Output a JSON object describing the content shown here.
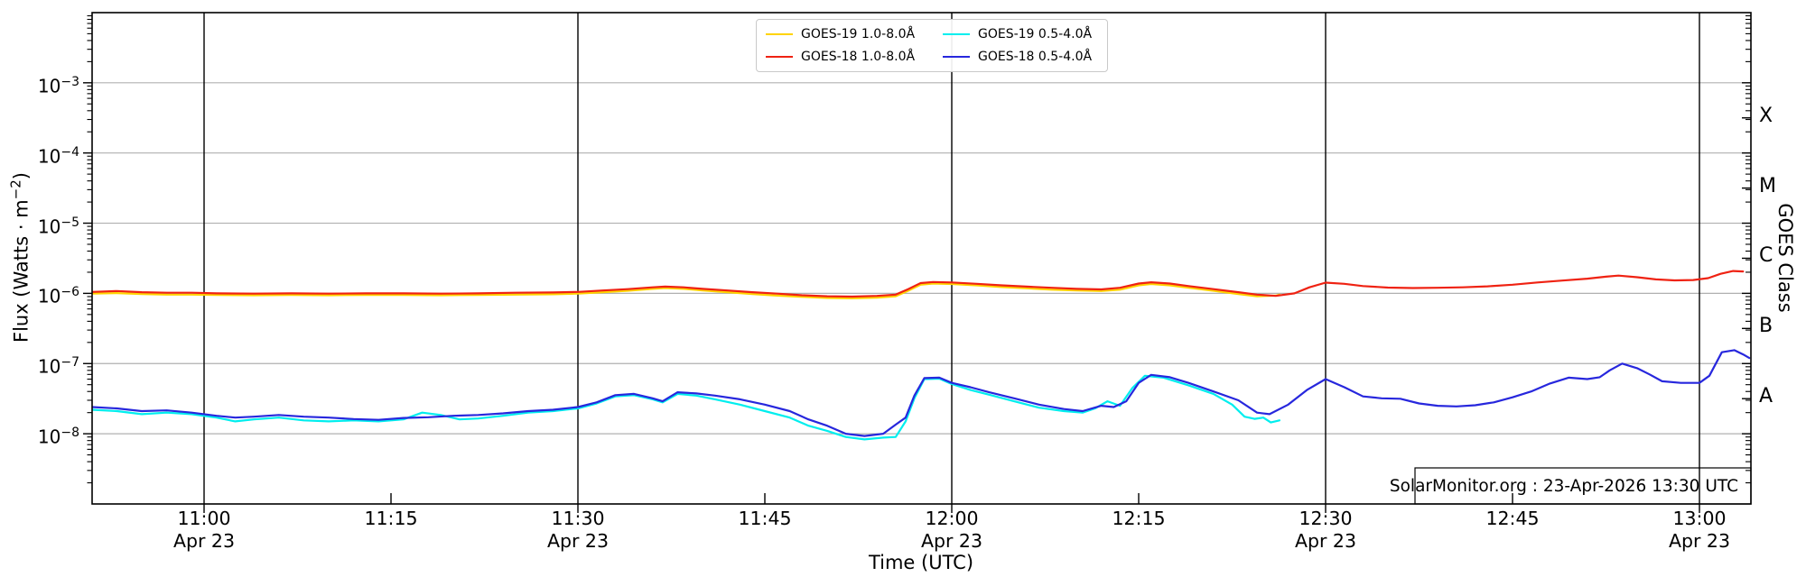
{
  "figure": {
    "watermark": "SolarMonitor.org : 23-Apr-2026 13:30 UTC",
    "xlabel": "Time (UTC)",
    "ylabel": "Flux (Watts · m⁻²)",
    "ylabel_pre": "Flux (Watts · m",
    "ylabel_sup": "−2",
    "ylabel_post": ")",
    "ylabel_right": "GOES Class"
  },
  "chart_data": {
    "type": "line",
    "title": "",
    "xlabel": "Time (UTC)",
    "ylabel": "Flux (Watts · m⁻²)",
    "ylabel_right": "GOES Class",
    "x_unit": "minutes relative to 11:00 UTC, Apr 23",
    "x_range_minutes": [
      -9,
      124.1
    ],
    "y_scale": "log",
    "y_log_range_exponents": [
      -9,
      -2
    ],
    "y_tick_exponents": [
      -3,
      -4,
      -5,
      -6,
      -7,
      -8
    ],
    "x_gridline_minutes": [
      0,
      30,
      60,
      90,
      120
    ],
    "x_minor_tick_minutes": [
      15,
      45,
      75,
      105
    ],
    "x_ticks": [
      {
        "minute": 0,
        "label": "11:00",
        "sublabel": "Apr 23"
      },
      {
        "minute": 15,
        "label": "11:15",
        "sublabel": ""
      },
      {
        "minute": 30,
        "label": "11:30",
        "sublabel": "Apr 23"
      },
      {
        "minute": 45,
        "label": "11:45",
        "sublabel": ""
      },
      {
        "minute": 60,
        "label": "12:00",
        "sublabel": "Apr 23"
      },
      {
        "minute": 75,
        "label": "12:15",
        "sublabel": ""
      },
      {
        "minute": 90,
        "label": "12:30",
        "sublabel": "Apr 23"
      },
      {
        "minute": 105,
        "label": "12:45",
        "sublabel": ""
      },
      {
        "minute": 120,
        "label": "13:00",
        "sublabel": "Apr 23"
      }
    ],
    "goes_class_bands": [
      {
        "label": "X",
        "center_exponent": -3.5
      },
      {
        "label": "M",
        "center_exponent": -4.5
      },
      {
        "label": "C",
        "center_exponent": -5.5
      },
      {
        "label": "B",
        "center_exponent": -6.5
      },
      {
        "label": "A",
        "center_exponent": -7.5
      }
    ],
    "colors": {
      "grid": "#b0b0b0",
      "axis": "#000000"
    },
    "series": [
      {
        "name": "GOES-19 1.0-8.0Å",
        "color": "#ffd400",
        "points": [
          [
            -9,
            9.9e-07
          ],
          [
            -7,
            1.01e-06
          ],
          [
            -5,
            9.8e-07
          ],
          [
            -3,
            9.6e-07
          ],
          [
            -1,
            9.6e-07
          ],
          [
            1,
            9.5e-07
          ],
          [
            4,
            9.4e-07
          ],
          [
            7,
            9.5e-07
          ],
          [
            10,
            9.4e-07
          ],
          [
            13,
            9.5e-07
          ],
          [
            16,
            9.5e-07
          ],
          [
            19,
            9.4e-07
          ],
          [
            22,
            9.5e-07
          ],
          [
            25,
            9.6e-07
          ],
          [
            28,
            9.7e-07
          ],
          [
            30,
            9.9e-07
          ],
          [
            32,
            1.04e-06
          ],
          [
            34,
            1.09e-06
          ],
          [
            36,
            1.16e-06
          ],
          [
            37,
            1.19e-06
          ],
          [
            38.5,
            1.16e-06
          ],
          [
            40,
            1.1e-06
          ],
          [
            42,
            1.04e-06
          ],
          [
            44,
            9.8e-07
          ],
          [
            46,
            9.3e-07
          ],
          [
            48,
            8.9e-07
          ],
          [
            50,
            8.6e-07
          ],
          [
            52,
            8.5e-07
          ],
          [
            54,
            8.7e-07
          ],
          [
            55.5,
            9.1e-07
          ],
          [
            56.5,
            1.09e-06
          ],
          [
            57.5,
            1.33e-06
          ],
          [
            58.5,
            1.38e-06
          ],
          [
            60,
            1.36e-06
          ],
          [
            62,
            1.3e-06
          ],
          [
            64,
            1.23e-06
          ],
          [
            66,
            1.18e-06
          ],
          [
            68,
            1.13e-06
          ],
          [
            70,
            1.1e-06
          ],
          [
            72,
            1.08e-06
          ],
          [
            73.5,
            1.13e-06
          ],
          [
            75,
            1.3e-06
          ],
          [
            76,
            1.36e-06
          ],
          [
            77.5,
            1.3e-06
          ],
          [
            79,
            1.2e-06
          ],
          [
            81,
            1.09e-06
          ],
          [
            83,
            9.8e-07
          ],
          [
            84.5,
            9.1e-07
          ],
          [
            86,
            9.3e-07
          ],
          [
            86.3,
            9.6e-07
          ]
        ]
      },
      {
        "name": "GOES-18 1.0-8.0Å",
        "color": "#ef2212",
        "points": [
          [
            -9,
            1.05e-06
          ],
          [
            -7,
            1.08e-06
          ],
          [
            -5,
            1.04e-06
          ],
          [
            -3,
            1.02e-06
          ],
          [
            -1,
            1.02e-06
          ],
          [
            1,
            1e-06
          ],
          [
            4,
            9.9e-07
          ],
          [
            7,
            1e-06
          ],
          [
            10,
            9.9e-07
          ],
          [
            13,
            1e-06
          ],
          [
            16,
            1e-06
          ],
          [
            19,
            9.9e-07
          ],
          [
            22,
            1e-06
          ],
          [
            25,
            1.02e-06
          ],
          [
            28,
            1.03e-06
          ],
          [
            30,
            1.05e-06
          ],
          [
            32,
            1.1e-06
          ],
          [
            34,
            1.15e-06
          ],
          [
            36,
            1.22e-06
          ],
          [
            37,
            1.25e-06
          ],
          [
            38.5,
            1.22e-06
          ],
          [
            40,
            1.16e-06
          ],
          [
            42,
            1.1e-06
          ],
          [
            44,
            1.04e-06
          ],
          [
            46,
            9.9e-07
          ],
          [
            48,
            9.4e-07
          ],
          [
            50,
            9.1e-07
          ],
          [
            52,
            9e-07
          ],
          [
            54,
            9.2e-07
          ],
          [
            55.5,
            9.6e-07
          ],
          [
            56.5,
            1.15e-06
          ],
          [
            57.5,
            1.4e-06
          ],
          [
            58.5,
            1.45e-06
          ],
          [
            60,
            1.43e-06
          ],
          [
            62,
            1.37e-06
          ],
          [
            64,
            1.3e-06
          ],
          [
            66,
            1.25e-06
          ],
          [
            68,
            1.2e-06
          ],
          [
            70,
            1.16e-06
          ],
          [
            72,
            1.14e-06
          ],
          [
            73.5,
            1.2e-06
          ],
          [
            75,
            1.38e-06
          ],
          [
            76,
            1.44e-06
          ],
          [
            77.5,
            1.38e-06
          ],
          [
            79,
            1.27e-06
          ],
          [
            81,
            1.15e-06
          ],
          [
            83,
            1.04e-06
          ],
          [
            84.5,
            9.6e-07
          ],
          [
            86,
            9.2e-07
          ],
          [
            87.5,
            1e-06
          ],
          [
            88.7,
            1.22e-06
          ],
          [
            90,
            1.42e-06
          ],
          [
            91.5,
            1.37e-06
          ],
          [
            93,
            1.27e-06
          ],
          [
            95,
            1.21e-06
          ],
          [
            97,
            1.19e-06
          ],
          [
            99,
            1.2e-06
          ],
          [
            101,
            1.22e-06
          ],
          [
            103,
            1.26e-06
          ],
          [
            105,
            1.33e-06
          ],
          [
            107,
            1.43e-06
          ],
          [
            109,
            1.52e-06
          ],
          [
            111,
            1.62e-06
          ],
          [
            112.5,
            1.73e-06
          ],
          [
            113.5,
            1.79e-06
          ],
          [
            115,
            1.7e-06
          ],
          [
            116.5,
            1.58e-06
          ],
          [
            118,
            1.53e-06
          ],
          [
            119.5,
            1.55e-06
          ],
          [
            120.7,
            1.65e-06
          ],
          [
            121.7,
            1.9e-06
          ],
          [
            122.7,
            2.08e-06
          ],
          [
            123.5,
            2.05e-06
          ]
        ]
      },
      {
        "name": "GOES-19 0.5-4.0Å",
        "color": "#00eeee",
        "points": [
          [
            -9,
            2.2e-08
          ],
          [
            -7,
            2.1e-08
          ],
          [
            -5,
            1.9e-08
          ],
          [
            -3,
            2e-08
          ],
          [
            -1,
            1.9e-08
          ],
          [
            1,
            1.7e-08
          ],
          [
            2.5,
            1.5e-08
          ],
          [
            4,
            1.6e-08
          ],
          [
            6,
            1.7e-08
          ],
          [
            8,
            1.55e-08
          ],
          [
            10,
            1.5e-08
          ],
          [
            12,
            1.55e-08
          ],
          [
            14,
            1.5e-08
          ],
          [
            16,
            1.6e-08
          ],
          [
            17.5,
            2e-08
          ],
          [
            19,
            1.85e-08
          ],
          [
            20.5,
            1.6e-08
          ],
          [
            22,
            1.65e-08
          ],
          [
            24,
            1.8e-08
          ],
          [
            26,
            2e-08
          ],
          [
            28,
            2.1e-08
          ],
          [
            30,
            2.3e-08
          ],
          [
            31.5,
            2.7e-08
          ],
          [
            33,
            3.4e-08
          ],
          [
            34.5,
            3.55e-08
          ],
          [
            36,
            3.1e-08
          ],
          [
            36.8,
            2.8e-08
          ],
          [
            38,
            3.7e-08
          ],
          [
            39.5,
            3.5e-08
          ],
          [
            41,
            3.1e-08
          ],
          [
            43,
            2.6e-08
          ],
          [
            45,
            2.1e-08
          ],
          [
            47,
            1.7e-08
          ],
          [
            48.5,
            1.3e-08
          ],
          [
            50,
            1.1e-08
          ],
          [
            51.5,
            9e-09
          ],
          [
            53,
            8.3e-09
          ],
          [
            54.5,
            8.8e-09
          ],
          [
            55.5,
            9e-09
          ],
          [
            56.3,
            1.5e-08
          ],
          [
            57,
            3.2e-08
          ],
          [
            57.8,
            6e-08
          ],
          [
            59,
            6.1e-08
          ],
          [
            60,
            5.1e-08
          ],
          [
            61.5,
            4.2e-08
          ],
          [
            63,
            3.6e-08
          ],
          [
            65,
            2.9e-08
          ],
          [
            67,
            2.35e-08
          ],
          [
            69,
            2.1e-08
          ],
          [
            70.5,
            2e-08
          ],
          [
            71.5,
            2.3e-08
          ],
          [
            72.5,
            2.9e-08
          ],
          [
            73.5,
            2.5e-08
          ],
          [
            74.5,
            4.5e-08
          ],
          [
            75.5,
            6.7e-08
          ],
          [
            77,
            6.3e-08
          ],
          [
            79,
            4.9e-08
          ],
          [
            81,
            3.7e-08
          ],
          [
            82.5,
            2.6e-08
          ],
          [
            83.5,
            1.75e-08
          ],
          [
            84.3,
            1.63e-08
          ],
          [
            85,
            1.7e-08
          ],
          [
            85.6,
            1.45e-08
          ],
          [
            86.3,
            1.55e-08
          ]
        ]
      },
      {
        "name": "GOES-18 0.5-4.0Å",
        "color": "#2727dd",
        "points": [
          [
            -9,
            2.4e-08
          ],
          [
            -7,
            2.3e-08
          ],
          [
            -5,
            2.1e-08
          ],
          [
            -3,
            2.15e-08
          ],
          [
            -1,
            2e-08
          ],
          [
            1,
            1.8e-08
          ],
          [
            2.5,
            1.7e-08
          ],
          [
            4,
            1.75e-08
          ],
          [
            6,
            1.85e-08
          ],
          [
            8,
            1.75e-08
          ],
          [
            10,
            1.7e-08
          ],
          [
            12,
            1.62e-08
          ],
          [
            14,
            1.58e-08
          ],
          [
            16,
            1.68e-08
          ],
          [
            18,
            1.72e-08
          ],
          [
            20,
            1.8e-08
          ],
          [
            22,
            1.85e-08
          ],
          [
            24,
            1.95e-08
          ],
          [
            26,
            2.1e-08
          ],
          [
            28,
            2.2e-08
          ],
          [
            30,
            2.4e-08
          ],
          [
            31.5,
            2.8e-08
          ],
          [
            33,
            3.55e-08
          ],
          [
            34.5,
            3.7e-08
          ],
          [
            36,
            3.2e-08
          ],
          [
            36.8,
            2.9e-08
          ],
          [
            38,
            3.9e-08
          ],
          [
            39.5,
            3.75e-08
          ],
          [
            41,
            3.5e-08
          ],
          [
            43,
            3.1e-08
          ],
          [
            45,
            2.6e-08
          ],
          [
            47,
            2.1e-08
          ],
          [
            48.5,
            1.6e-08
          ],
          [
            50,
            1.3e-08
          ],
          [
            51.5,
            1e-08
          ],
          [
            53,
            9.3e-09
          ],
          [
            54.5,
            1e-08
          ],
          [
            55.5,
            1.35e-08
          ],
          [
            56.3,
            1.7e-08
          ],
          [
            57,
            3.5e-08
          ],
          [
            57.8,
            6.2e-08
          ],
          [
            59,
            6.3e-08
          ],
          [
            60,
            5.3e-08
          ],
          [
            61.5,
            4.6e-08
          ],
          [
            63,
            3.9e-08
          ],
          [
            65,
            3.2e-08
          ],
          [
            67,
            2.6e-08
          ],
          [
            69,
            2.25e-08
          ],
          [
            70.5,
            2.1e-08
          ],
          [
            72,
            2.5e-08
          ],
          [
            73,
            2.4e-08
          ],
          [
            74,
            2.9e-08
          ],
          [
            75,
            5.3e-08
          ],
          [
            76,
            6.9e-08
          ],
          [
            77.5,
            6.4e-08
          ],
          [
            79,
            5.3e-08
          ],
          [
            81,
            4e-08
          ],
          [
            83,
            3e-08
          ],
          [
            84.5,
            2e-08
          ],
          [
            85.5,
            1.9e-08
          ],
          [
            87,
            2.6e-08
          ],
          [
            88.5,
            4.2e-08
          ],
          [
            90,
            6e-08
          ],
          [
            91.5,
            4.6e-08
          ],
          [
            93,
            3.4e-08
          ],
          [
            94.5,
            3.2e-08
          ],
          [
            96,
            3.15e-08
          ],
          [
            97.5,
            2.7e-08
          ],
          [
            99,
            2.5e-08
          ],
          [
            100.5,
            2.45e-08
          ],
          [
            102,
            2.55e-08
          ],
          [
            103.5,
            2.8e-08
          ],
          [
            105,
            3.3e-08
          ],
          [
            106.5,
            4e-08
          ],
          [
            108,
            5.2e-08
          ],
          [
            109.5,
            6.3e-08
          ],
          [
            111,
            6e-08
          ],
          [
            112,
            6.4e-08
          ],
          [
            112.8,
            8e-08
          ],
          [
            113.8,
            1e-07
          ],
          [
            115,
            8.6e-08
          ],
          [
            116,
            7e-08
          ],
          [
            117,
            5.6e-08
          ],
          [
            118.5,
            5.3e-08
          ],
          [
            120,
            5.3e-08
          ],
          [
            120.8,
            6.7e-08
          ],
          [
            121.8,
            1.45e-07
          ],
          [
            122.8,
            1.55e-07
          ],
          [
            123.5,
            1.35e-07
          ],
          [
            124,
            1.2e-07
          ]
        ]
      }
    ],
    "legend_order": [
      0,
      2,
      1,
      3
    ],
    "legend_position": "top center"
  }
}
